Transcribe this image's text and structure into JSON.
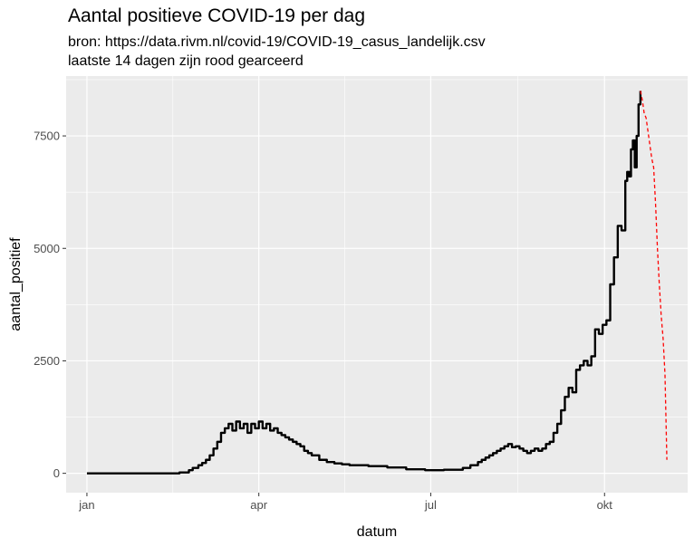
{
  "chart_data": {
    "type": "line",
    "title": "Aantal positieve COVID-19 per dag",
    "subtitle_lines": [
      "bron: https://data.rivm.nl/covid-19/COVID-19_casus_landelijk.csv",
      "laatste 14 dagen zijn rood gearceerd"
    ],
    "xlabel": "datum",
    "ylabel": "aantal_positief",
    "x_ticks": [
      "jan",
      "apr",
      "jul",
      "okt"
    ],
    "y_ticks": [
      0,
      2500,
      5000,
      7500
    ],
    "x_unit": "day of year 2020",
    "x_tick_days": [
      1,
      92,
      183,
      275
    ],
    "xlim": [
      -10,
      319
    ],
    "ylim": [
      -430,
      8830
    ],
    "grid": true,
    "legend": "none",
    "colors": {
      "panel": "#ebebeb",
      "grid": "#ffffff",
      "main_line": "#000000",
      "recent_line": "#ff0000"
    },
    "series": [
      {
        "style": "solid",
        "color": "#000000",
        "x": [
          1,
          40,
          50,
          55,
          57,
          60,
          62,
          64,
          66,
          68,
          70,
          72,
          74,
          76,
          78,
          80,
          82,
          84,
          86,
          88,
          90,
          92,
          94,
          96,
          98,
          100,
          102,
          104,
          106,
          108,
          110,
          112,
          114,
          116,
          118,
          120,
          124,
          128,
          132,
          136,
          140,
          150,
          160,
          170,
          180,
          190,
          200,
          204,
          208,
          210,
          212,
          214,
          216,
          218,
          220,
          222,
          224,
          226,
          228,
          230,
          232,
          234,
          236,
          238,
          240,
          242,
          244,
          246,
          248,
          250,
          252,
          254,
          256,
          258,
          260,
          262,
          264,
          266,
          268,
          270,
          272,
          274,
          276,
          278,
          280,
          282,
          284,
          286,
          287,
          288,
          289,
          290,
          291,
          292,
          293,
          294
        ],
        "y": [
          0,
          0,
          20,
          70,
          120,
          180,
          230,
          300,
          400,
          550,
          700,
          900,
          1000,
          1100,
          950,
          1150,
          1000,
          1100,
          900,
          1100,
          1000,
          1150,
          1000,
          1100,
          950,
          1000,
          900,
          850,
          800,
          750,
          700,
          650,
          600,
          500,
          450,
          400,
          300,
          250,
          220,
          200,
          180,
          160,
          130,
          90,
          70,
          80,
          120,
          180,
          250,
          300,
          350,
          400,
          450,
          500,
          550,
          600,
          650,
          580,
          600,
          550,
          500,
          450,
          500,
          550,
          500,
          550,
          650,
          700,
          900,
          1100,
          1400,
          1700,
          1900,
          1800,
          2300,
          2400,
          2500,
          2400,
          2600,
          3200,
          3100,
          3300,
          3400,
          4200,
          4800,
          5500,
          5400,
          6500,
          6700,
          6600,
          7200,
          7400,
          6800,
          7500,
          8200,
          8500
        ]
      },
      {
        "style": "dashed",
        "color": "#ff0000",
        "x": [
          294,
          295,
          296,
          297,
          298,
          299,
          300,
          301,
          302,
          303,
          304,
          305,
          306,
          307,
          308
        ],
        "y": [
          8500,
          8300,
          8000,
          7900,
          7600,
          7300,
          7000,
          6800,
          6000,
          5000,
          4200,
          3500,
          3000,
          2200,
          300
        ]
      }
    ]
  }
}
